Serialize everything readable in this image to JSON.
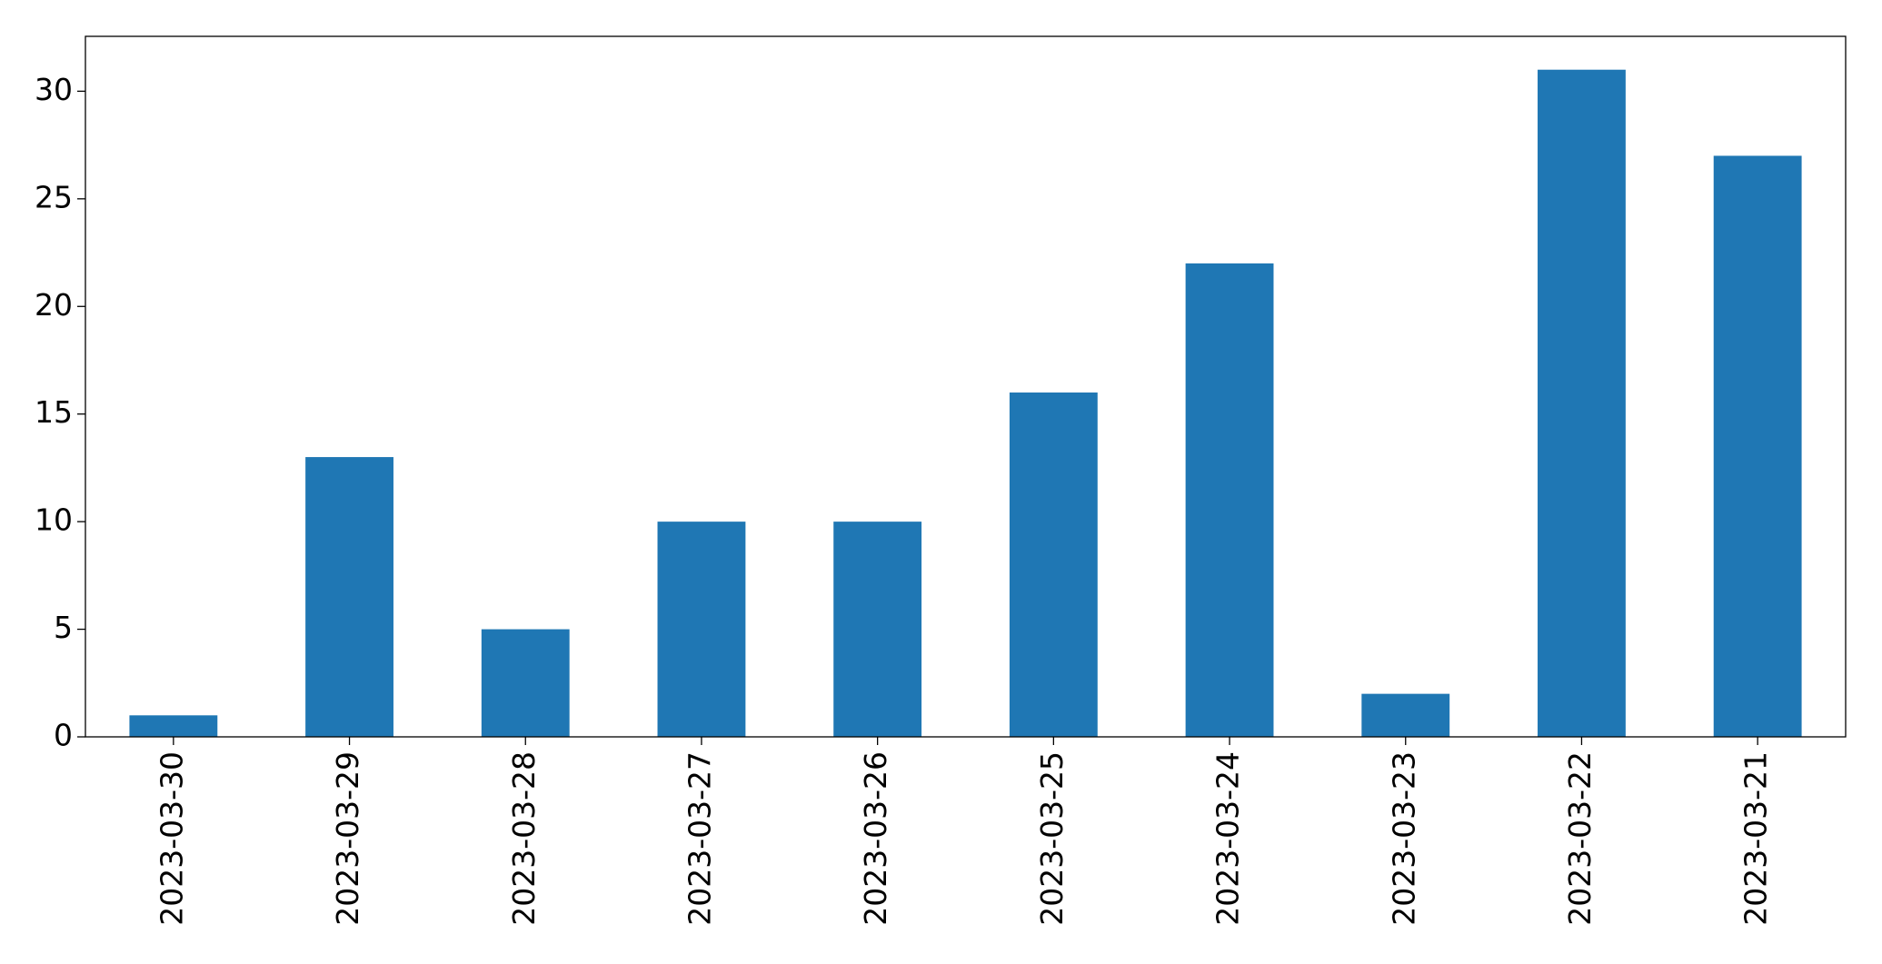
{
  "chart_data": {
    "type": "bar",
    "categories": [
      "2023-03-30",
      "2023-03-29",
      "2023-03-28",
      "2023-03-27",
      "2023-03-26",
      "2023-03-25",
      "2023-03-24",
      "2023-03-23",
      "2023-03-22",
      "2023-03-21"
    ],
    "values": [
      1,
      13,
      5,
      10,
      10,
      16,
      22,
      2,
      31,
      27
    ],
    "color": "#1f77b4",
    "ylim": [
      0,
      32.55
    ],
    "yticks": [
      0,
      5,
      10,
      15,
      20,
      25,
      30
    ],
    "grid": false
  }
}
